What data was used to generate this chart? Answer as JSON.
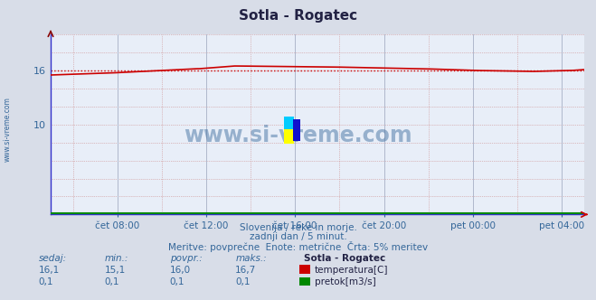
{
  "title": "Sotla - Rogatec",
  "bg_color": "#d8dde8",
  "plot_bg_color": "#e8eef8",
  "grid_color_major": "#b0b8cc",
  "grid_color_minor": "#cc9999",
  "line_color_temp": "#cc0000",
  "line_color_flow": "#008800",
  "avg_line_color": "#cc0000",
  "xlabel_color": "#336699",
  "title_color": "#222244",
  "watermark_color": "#336699",
  "watermark_text": "www.si-vreme.com",
  "footnote1": "Slovenija / reke in morje.",
  "footnote2": "zadnji dan / 5 minut.",
  "footnote3": "Meritve: povprečne  Enote: metrične  Črta: 5% meritev",
  "xtick_labels": [
    "čet 08:00",
    "čet 12:00",
    "čet 16:00",
    "čet 20:00",
    "pet 00:00",
    "pet 04:00"
  ],
  "xtick_positions": [
    0.125,
    0.291,
    0.458,
    0.625,
    0.791,
    0.958
  ],
  "ylim": [
    0,
    20
  ],
  "ytick_vals": [
    10,
    16
  ],
  "ytick_labels": [
    "10",
    "16"
  ],
  "avg_temp": 16.0,
  "table_headers": [
    "sedaj:",
    "min.:",
    "povpr.:",
    "maks.:"
  ],
  "table_values_temp": [
    "16,1",
    "15,1",
    "16,0",
    "16,7"
  ],
  "table_values_flow": [
    "0,1",
    "0,1",
    "0,1",
    "0,1"
  ],
  "legend_station": "Sotla - Rogatec",
  "legend_temp_label": "temperatura[C]",
  "legend_flow_label": "pretok[m3/s]",
  "sidebar_text": "www.si-vreme.com",
  "sidebar_color": "#336699"
}
